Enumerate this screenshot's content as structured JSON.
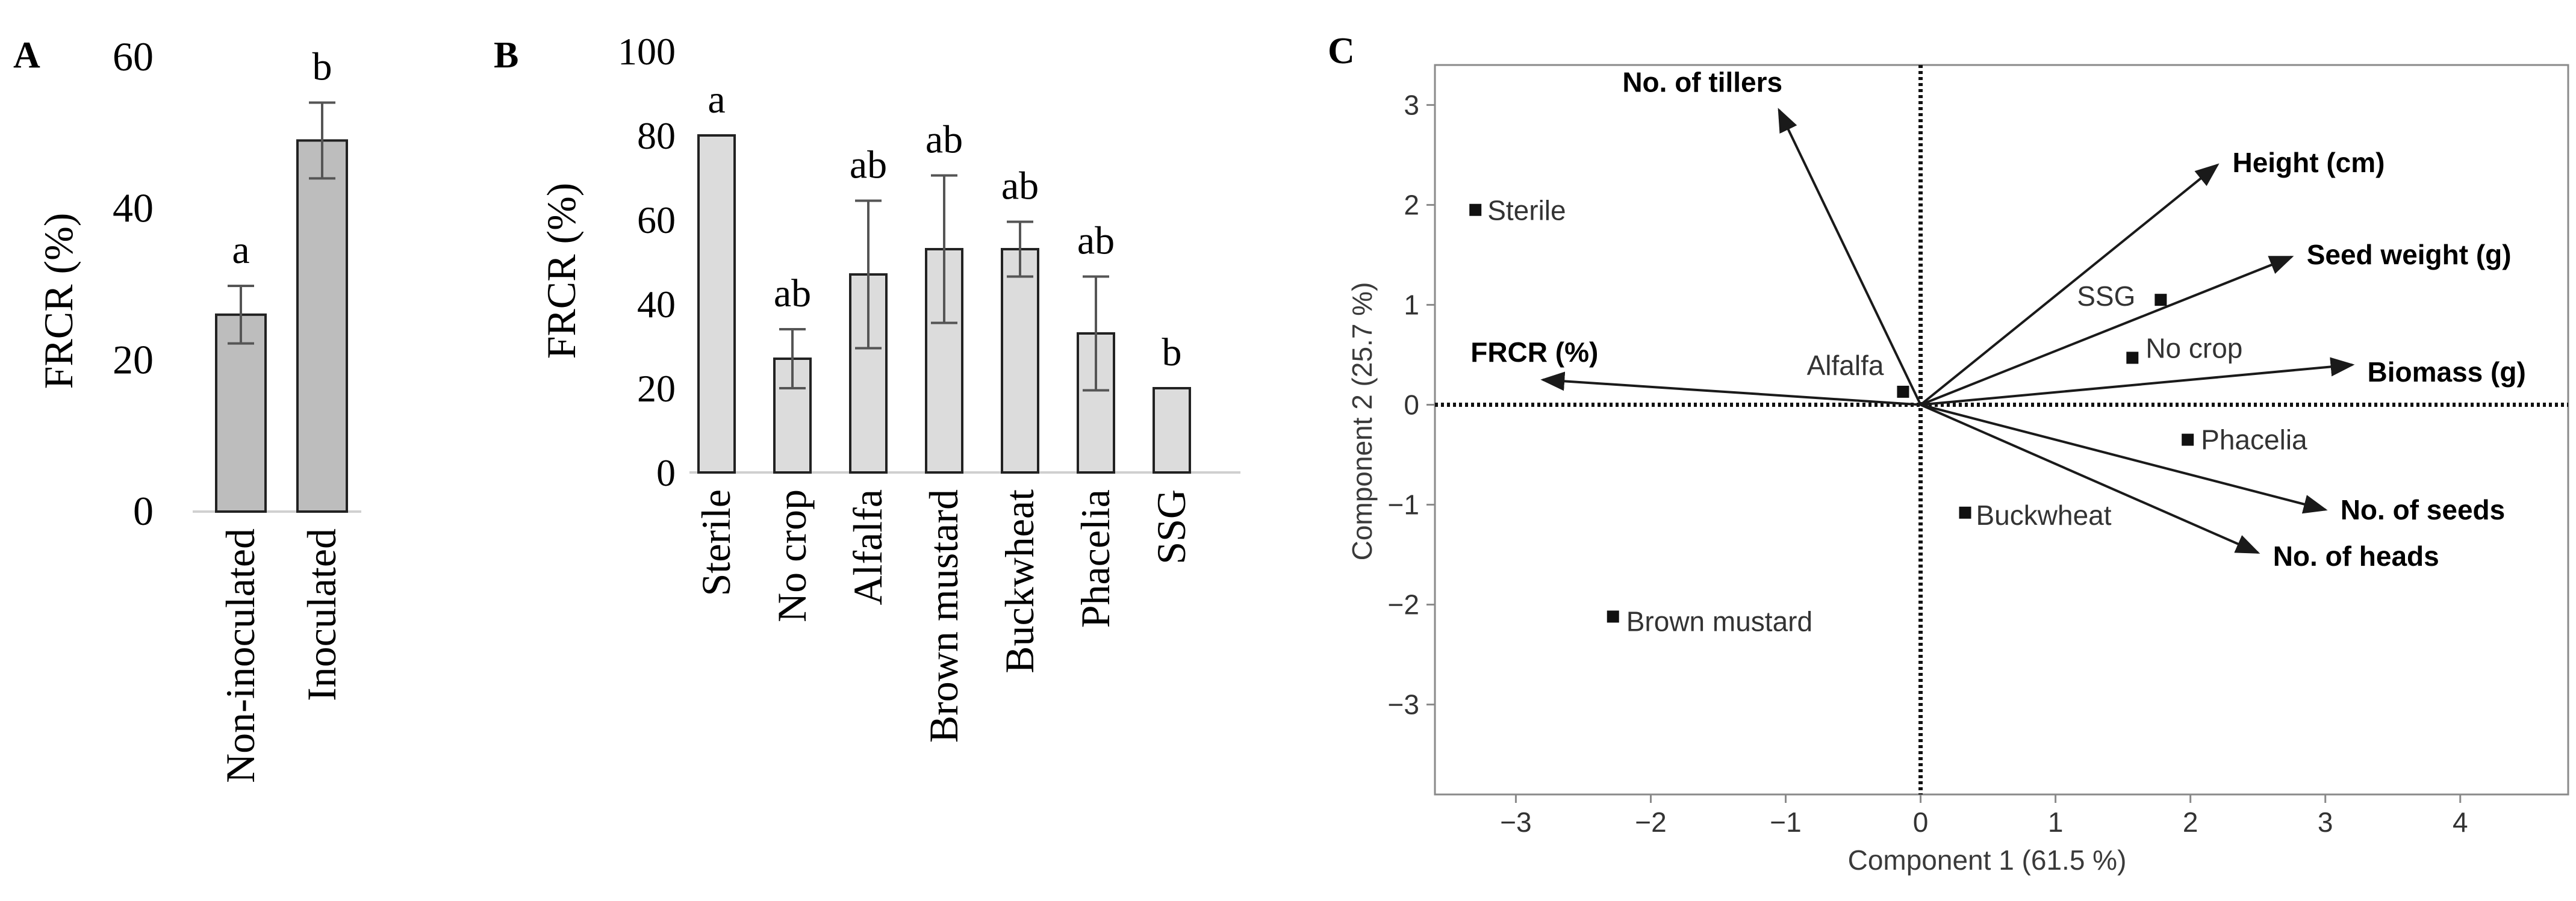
{
  "chart_data": [
    {
      "panel": "A",
      "type": "bar",
      "ylabel": "FRCR (%)",
      "ylim": [
        0,
        60
      ],
      "yticks": [
        0,
        20,
        40,
        60
      ],
      "categories": [
        "Non-inoculated",
        "Inoculated"
      ],
      "values": [
        26,
        49
      ],
      "errors": [
        3.8,
        5
      ],
      "letters": [
        "a",
        "b"
      ]
    },
    {
      "panel": "B",
      "type": "bar",
      "ylabel": "FRCR (%)",
      "ylim": [
        0,
        100
      ],
      "yticks": [
        0,
        20,
        40,
        60,
        80,
        100
      ],
      "categories": [
        "Sterile",
        "No crop",
        "Alfalfa",
        "Brown mustard",
        "Buckwheat",
        "Phacelia",
        "SSG"
      ],
      "values": [
        80,
        27,
        47,
        53,
        53,
        33,
        20
      ],
      "errors": [
        0,
        7,
        17.5,
        17.5,
        6.5,
        13.5,
        0
      ],
      "letters": [
        "a",
        "ab",
        "ab",
        "ab",
        "ab",
        "ab",
        "b"
      ]
    },
    {
      "panel": "C",
      "type": "scatter",
      "subtype": "biplot",
      "xlabel": "Component 1  (61.5 %)",
      "ylabel": "Component 2  (25.7 %)",
      "xlim": [
        -3.6,
        4.8
      ],
      "ylim": [
        -3.9,
        3.4
      ],
      "xticks": [
        -3,
        -2,
        -1,
        0,
        1,
        2,
        3,
        4
      ],
      "yticks": [
        -3,
        -2,
        -1,
        0,
        1,
        2,
        3
      ],
      "points": [
        {
          "label": "Sterile",
          "x": -3.3,
          "y": 1.95
        },
        {
          "label": "SSG",
          "x": 1.78,
          "y": 1.05
        },
        {
          "label": "No crop",
          "x": 1.57,
          "y": 0.47
        },
        {
          "label": "Alfalfa",
          "x": -0.13,
          "y": 0.13
        },
        {
          "label": "Phacelia",
          "x": 1.98,
          "y": -0.35
        },
        {
          "label": "Buckwheat",
          "x": 0.33,
          "y": -1.08
        },
        {
          "label": "Brown mustard",
          "x": -2.28,
          "y": -2.12
        }
      ],
      "vectors": [
        {
          "label": "No. of tillers",
          "x": -1.05,
          "y": 2.95
        },
        {
          "label": "Height (cm)",
          "x": 2.2,
          "y": 2.4
        },
        {
          "label": "Seed weight (g)",
          "x": 2.75,
          "y": 1.48
        },
        {
          "label": "FRCR (%)",
          "x": -2.8,
          "y": 0.25
        },
        {
          "label": "Biomass (g)",
          "x": 3.2,
          "y": 0.4
        },
        {
          "label": "No. of seeds",
          "x": 3.0,
          "y": -1.05
        },
        {
          "label": "No. of heads",
          "x": 2.5,
          "y": -1.48
        }
      ]
    }
  ]
}
